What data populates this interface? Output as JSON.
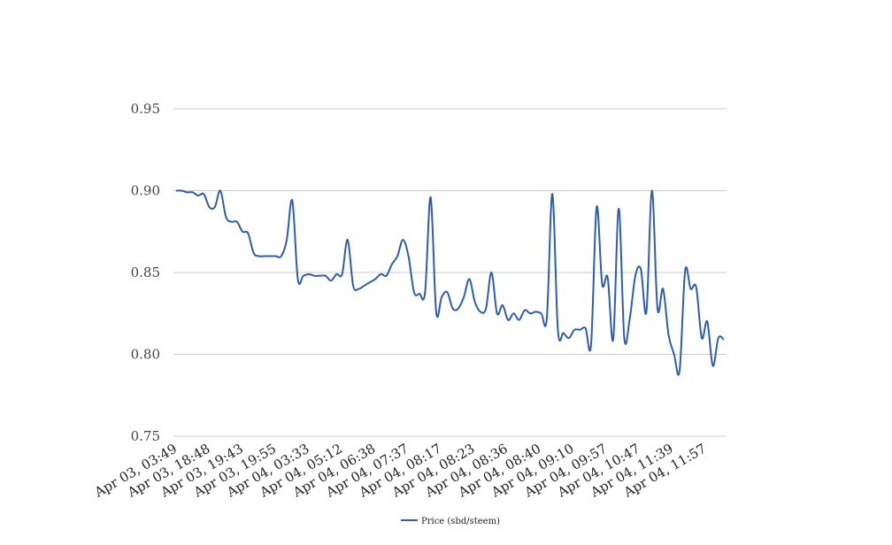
{
  "chart_data": {
    "type": "line",
    "title": "",
    "xlabel": "",
    "ylabel": "",
    "ylim": [
      0.75,
      0.95
    ],
    "y_ticks": [
      "0.75",
      "0.80",
      "0.85",
      "0.90",
      "0.95"
    ],
    "x_tick_labels": [
      "Apr 03, 03:49",
      "Apr 03, 18:48",
      "Apr 03, 19:43",
      "Apr 03, 19:55",
      "Apr 04, 03:33",
      "Apr 04, 05:12",
      "Apr 04, 06:38",
      "Apr 04, 07:37",
      "Apr 04, 08:17",
      "Apr 04, 08:23",
      "Apr 04, 08:36",
      "Apr 04, 08:40",
      "Apr 04, 09:10",
      "Apr 04, 09:57",
      "Apr 04, 10:47",
      "Apr 04, 11:39",
      "Apr 04, 11:57"
    ],
    "grid": true,
    "legend": "bottom-center",
    "series": [
      {
        "name": "Price (sbd/steem)",
        "color": "#2e5cb0",
        "values": [
          0.9,
          0.9,
          0.899,
          0.899,
          0.897,
          0.898,
          0.89,
          0.89,
          0.9,
          0.884,
          0.881,
          0.881,
          0.875,
          0.874,
          0.862,
          0.86,
          0.86,
          0.86,
          0.86,
          0.86,
          0.87,
          0.894,
          0.846,
          0.848,
          0.849,
          0.848,
          0.848,
          0.848,
          0.845,
          0.849,
          0.849,
          0.87,
          0.842,
          0.84,
          0.842,
          0.844,
          0.846,
          0.849,
          0.848,
          0.855,
          0.86,
          0.87,
          0.86,
          0.838,
          0.837,
          0.838,
          0.896,
          0.826,
          0.835,
          0.838,
          0.828,
          0.828,
          0.835,
          0.846,
          0.832,
          0.826,
          0.828,
          0.85,
          0.825,
          0.83,
          0.821,
          0.825,
          0.821,
          0.827,
          0.825,
          0.826,
          0.825,
          0.822,
          0.898,
          0.815,
          0.813,
          0.81,
          0.815,
          0.815,
          0.816,
          0.806,
          0.89,
          0.843,
          0.847,
          0.809,
          0.889,
          0.81,
          0.822,
          0.848,
          0.852,
          0.826,
          0.9,
          0.828,
          0.84,
          0.812,
          0.8,
          0.79,
          0.851,
          0.84,
          0.841,
          0.81,
          0.82,
          0.793,
          0.81,
          0.809
        ]
      }
    ]
  }
}
